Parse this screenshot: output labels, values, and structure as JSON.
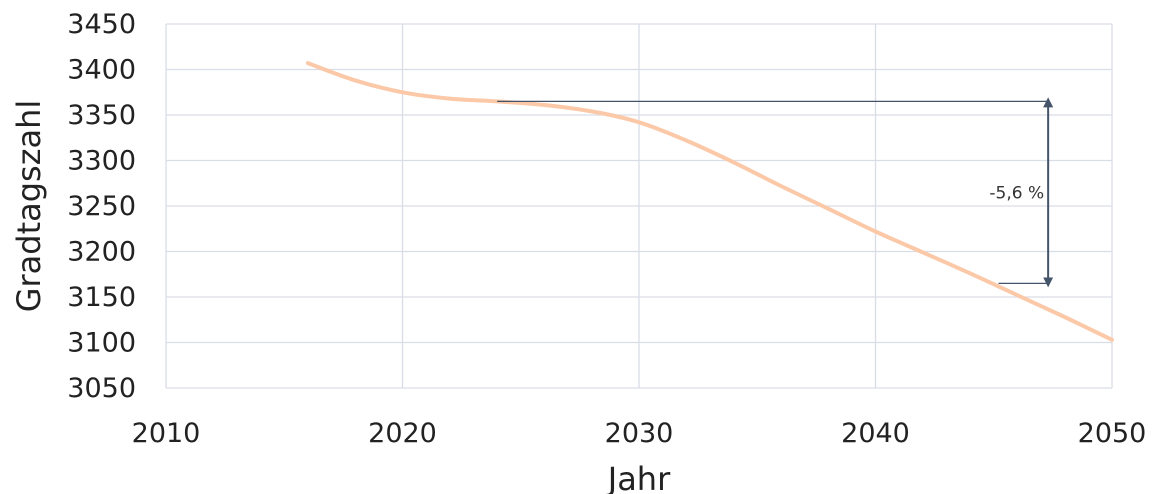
{
  "chart_data": {
    "type": "line",
    "title": "",
    "xlabel": "Jahr",
    "ylabel": "Gradtagszahl",
    "xlim": [
      2010,
      2050
    ],
    "ylim": [
      3050,
      3450
    ],
    "xticks": [
      2010,
      2020,
      2030,
      2040,
      2050
    ],
    "yticks": [
      3050,
      3100,
      3150,
      3200,
      3250,
      3300,
      3350,
      3400,
      3450
    ],
    "grid": true,
    "legend": "none",
    "series": [
      {
        "color": "#fbc8a8",
        "x": [
          2016,
          2018,
          2020,
          2022,
          2024,
          2026,
          2028,
          2030,
          2032,
          2034,
          2036,
          2038,
          2040,
          2042,
          2044,
          2046,
          2048,
          2050
        ],
        "y": [
          3407,
          3388,
          3375,
          3368,
          3365,
          3361,
          3354,
          3342,
          3322,
          3298,
          3272,
          3247,
          3222,
          3199,
          3176,
          3152,
          3128,
          3103
        ]
      }
    ],
    "annotation": {
      "label": "-5,6 %",
      "x_arrow": 2047.3,
      "y_top": 3365,
      "y_bottom": 3165,
      "x_top_line_start": 2024,
      "x_bottom_line_start": 2045.2,
      "color": "#44546a"
    }
  }
}
